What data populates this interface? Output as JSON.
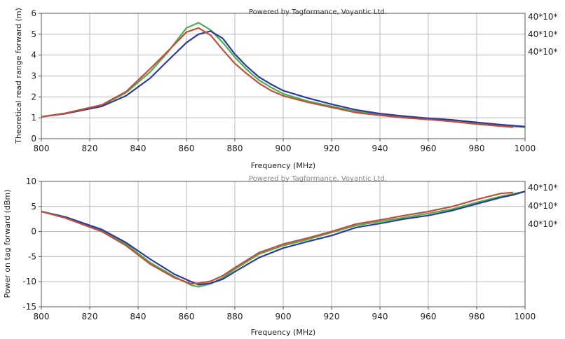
{
  "chart_data": [
    {
      "type": "line",
      "credit": "Powered by Tagformance, Voyantic Ltd.",
      "xlabel": "Frequency (MHz)",
      "ylabel": "Theoretical read range forward (m)",
      "xlim": [
        800,
        1000
      ],
      "ylim": [
        0,
        6
      ],
      "grid": true,
      "x_ticks": [
        "800",
        "820",
        "840",
        "860",
        "880",
        "900",
        "920",
        "940",
        "960",
        "980",
        "1000"
      ],
      "y_ticks": [
        "0",
        "1",
        "2",
        "3",
        "4",
        "5",
        "6"
      ],
      "legend_labels": [
        "40*10*",
        "40*10*",
        "40*10*"
      ],
      "series": [
        {
          "color": "#4caf50",
          "x": [
            800,
            810,
            825,
            835,
            845,
            852,
            860,
            865,
            870,
            875,
            880,
            885,
            890,
            895,
            900,
            910,
            920,
            930,
            940,
            950,
            960,
            970,
            980,
            990,
            1000
          ],
          "y": [
            1.05,
            1.2,
            1.6,
            2.2,
            3.2,
            4.1,
            5.3,
            5.55,
            5.2,
            4.6,
            3.9,
            3.3,
            2.8,
            2.45,
            2.15,
            1.8,
            1.55,
            1.3,
            1.15,
            1.05,
            0.95,
            0.85,
            0.72,
            0.62,
            0.55
          ]
        },
        {
          "color": "#2f3a9e",
          "x": [
            800,
            810,
            825,
            835,
            845,
            852,
            860,
            865,
            870,
            875,
            880,
            885,
            890,
            895,
            900,
            910,
            920,
            930,
            940,
            950,
            960,
            970,
            980,
            990,
            1000
          ],
          "y": [
            1.05,
            1.2,
            1.55,
            2.05,
            2.9,
            3.7,
            4.6,
            5.0,
            5.15,
            4.8,
            4.05,
            3.45,
            2.95,
            2.6,
            2.3,
            1.95,
            1.65,
            1.38,
            1.2,
            1.08,
            0.98,
            0.9,
            0.78,
            0.67,
            0.58
          ]
        },
        {
          "color": "#c0503a",
          "x": [
            800,
            810,
            825,
            835,
            845,
            852,
            860,
            865,
            870,
            875,
            880,
            885,
            890,
            895,
            900,
            910,
            920,
            930,
            940,
            950,
            960,
            970,
            980,
            990,
            995
          ],
          "y": [
            1.05,
            1.22,
            1.62,
            2.25,
            3.35,
            4.15,
            5.1,
            5.3,
            4.95,
            4.25,
            3.6,
            3.1,
            2.65,
            2.3,
            2.05,
            1.75,
            1.5,
            1.25,
            1.12,
            1.0,
            0.92,
            0.82,
            0.7,
            0.6,
            0.55
          ]
        }
      ]
    },
    {
      "type": "line",
      "credit": "Powered by Tagformance, Voyantic Ltd.",
      "xlabel": "Frequency (MHz)",
      "ylabel": "Power on tag forward (dBm)",
      "xlim": [
        800,
        1000
      ],
      "ylim": [
        -15,
        10
      ],
      "grid": true,
      "x_ticks": [
        "800",
        "820",
        "840",
        "860",
        "880",
        "900",
        "920",
        "940",
        "960",
        "980",
        "1000"
      ],
      "y_ticks": [
        "-15",
        "-10",
        "-5",
        "0",
        "5",
        "10"
      ],
      "legend_labels": [
        "40*10*",
        "40*10*",
        "40*10*"
      ],
      "series": [
        {
          "color": "#4caf50",
          "x": [
            800,
            810,
            825,
            835,
            845,
            855,
            862,
            865,
            870,
            875,
            880,
            890,
            900,
            910,
            920,
            930,
            940,
            950,
            960,
            970,
            980,
            990,
            995,
            1000
          ],
          "y": [
            4.0,
            2.8,
            0.2,
            -2.5,
            -6.2,
            -9.0,
            -10.7,
            -11.0,
            -10.4,
            -9.2,
            -7.5,
            -4.5,
            -2.8,
            -1.6,
            -0.2,
            1.2,
            2.0,
            2.8,
            3.6,
            4.5,
            5.8,
            7.0,
            7.5,
            8.0
          ]
        },
        {
          "color": "#2f3a9e",
          "x": [
            800,
            810,
            825,
            835,
            845,
            855,
            862,
            865,
            870,
            875,
            880,
            890,
            900,
            910,
            920,
            930,
            940,
            950,
            960,
            970,
            980,
            990,
            995,
            1000
          ],
          "y": [
            4.0,
            2.9,
            0.4,
            -2.2,
            -5.5,
            -8.5,
            -10.0,
            -10.6,
            -10.3,
            -9.5,
            -8.0,
            -5.2,
            -3.3,
            -2.0,
            -0.8,
            0.8,
            1.6,
            2.5,
            3.2,
            4.2,
            5.5,
            6.8,
            7.3,
            8.0
          ]
        },
        {
          "color": "#c0503a",
          "x": [
            800,
            810,
            825,
            835,
            845,
            855,
            862,
            865,
            870,
            875,
            880,
            890,
            900,
            910,
            920,
            930,
            940,
            950,
            960,
            970,
            980,
            990,
            995
          ],
          "y": [
            4.0,
            2.7,
            0.0,
            -2.8,
            -6.5,
            -9.2,
            -10.4,
            -10.3,
            -9.9,
            -8.8,
            -7.2,
            -4.2,
            -2.5,
            -1.3,
            0.0,
            1.5,
            2.3,
            3.2,
            4.0,
            5.0,
            6.4,
            7.6,
            7.8
          ]
        }
      ]
    }
  ]
}
